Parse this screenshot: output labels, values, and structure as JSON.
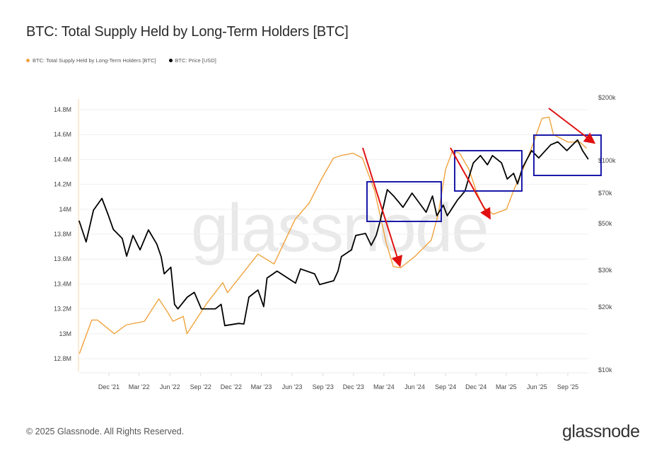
{
  "title": "BTC: Total Supply Held by Long-Term Holders [BTC]",
  "footer": "© 2025 Glassnode. All Rights Reserved.",
  "logo": "glassnode",
  "watermark": "glassnode",
  "colors": {
    "lth_supply": "#f0a33e",
    "price": "#000000",
    "box": "#1a1aaa",
    "arrow": "#e01010"
  },
  "chart_data": {
    "type": "line",
    "title": "BTC: Total Supply Held by Long-Term Holders [BTC]",
    "legend_position": "top-left",
    "grid": true,
    "x_ticks": [
      "Dec '21",
      "Mar '22",
      "Jun '22",
      "Sep '22",
      "Dec '22",
      "Mar '23",
      "Jun '23",
      "Sep '23",
      "Dec '23",
      "Mar '24",
      "Jun '24",
      "Sep '24",
      "Dec '24",
      "Mar '25",
      "Jun '25",
      "Sep '25"
    ],
    "x_tick_dates": [
      "2021-12-01",
      "2022-03-01",
      "2022-06-01",
      "2022-09-01",
      "2022-12-01",
      "2023-03-01",
      "2023-06-01",
      "2023-09-01",
      "2023-12-01",
      "2024-03-01",
      "2024-06-01",
      "2024-09-01",
      "2024-12-01",
      "2025-03-01",
      "2025-06-01",
      "2025-09-01"
    ],
    "xlim": [
      "2021-09-03",
      "2025-11-02"
    ],
    "y_left": {
      "ticks": [
        "12.8M",
        "13M",
        "13.2M",
        "13.4M",
        "13.6M",
        "13.8M",
        "14M",
        "14.2M",
        "14.4M",
        "14.6M",
        "14.8M"
      ],
      "tick_values": [
        12.8,
        13.0,
        13.2,
        13.4,
        13.6,
        13.8,
        14.0,
        14.2,
        14.4,
        14.6,
        14.8
      ],
      "ylim": [
        12.8,
        14.8
      ],
      "unit": "M BTC"
    },
    "y_right": {
      "scale": "log",
      "ticks": [
        "$10k",
        "$20k",
        "$30k",
        "$50k",
        "$70k",
        "$100k",
        "$200k"
      ],
      "tick_values": [
        10000,
        20000,
        30000,
        50000,
        70000,
        100000,
        200000
      ],
      "ylim": [
        10000,
        200000
      ]
    },
    "series": [
      {
        "name": "BTC: Total Supply Held by Long-Term Holders [BTC]",
        "axis": "left",
        "x": [
          "2021-09-04",
          "2021-10-11",
          "2021-10-28",
          "2021-12-17",
          "2022-01-21",
          "2022-03-17",
          "2022-04-29",
          "2022-05-26",
          "2022-06-10",
          "2022-07-11",
          "2022-07-22",
          "2022-09-18",
          "2022-11-06",
          "2022-11-20",
          "2023-02-19",
          "2023-04-08",
          "2023-06-10",
          "2023-07-22",
          "2023-08-27",
          "2023-10-02",
          "2023-10-23",
          "2023-11-30",
          "2023-12-28",
          "2024-02-02",
          "2024-03-08",
          "2024-03-29",
          "2024-04-20",
          "2024-06-01",
          "2024-07-20",
          "2024-08-10",
          "2024-09-01",
          "2024-09-22",
          "2024-10-13",
          "2024-11-10",
          "2024-12-01",
          "2024-12-22",
          "2025-01-21",
          "2025-03-02",
          "2025-03-23",
          "2025-04-20",
          "2025-05-17",
          "2025-06-16",
          "2025-07-07",
          "2025-07-20",
          "2025-09-01",
          "2025-10-07",
          "2025-10-27"
        ],
        "y": [
          12.84,
          13.11,
          13.11,
          13.0,
          13.07,
          13.1,
          13.28,
          13.17,
          13.1,
          13.14,
          13.0,
          13.24,
          13.41,
          13.33,
          13.64,
          13.56,
          13.92,
          14.05,
          14.24,
          14.41,
          14.43,
          14.45,
          14.41,
          14.15,
          13.73,
          13.54,
          13.53,
          13.62,
          13.75,
          13.96,
          14.32,
          14.47,
          14.45,
          14.32,
          14.15,
          14.02,
          13.96,
          14.0,
          14.15,
          14.32,
          14.5,
          14.73,
          14.74,
          14.6,
          14.54,
          14.54,
          14.49
        ]
      },
      {
        "name": "BTC: Price [USD]",
        "axis": "right",
        "x": [
          "2021-09-03",
          "2021-09-24",
          "2021-10-16",
          "2021-11-10",
          "2021-11-29",
          "2021-12-14",
          "2022-01-10",
          "2022-01-23",
          "2022-02-11",
          "2022-03-04",
          "2022-03-29",
          "2022-04-23",
          "2022-05-06",
          "2022-05-15",
          "2022-06-04",
          "2022-06-15",
          "2022-06-25",
          "2022-07-23",
          "2022-08-13",
          "2022-09-03",
          "2022-10-15",
          "2022-11-01",
          "2022-11-12",
          "2022-12-24",
          "2023-01-08",
          "2023-01-23",
          "2023-02-19",
          "2023-03-08",
          "2023-03-18",
          "2023-04-17",
          "2023-06-11",
          "2023-06-26",
          "2023-08-07",
          "2023-08-22",
          "2023-10-03",
          "2023-10-16",
          "2023-10-26",
          "2023-11-25",
          "2023-12-08",
          "2024-01-06",
          "2024-01-23",
          "2024-02-07",
          "2024-02-19",
          "2024-03-05",
          "2024-03-11",
          "2024-03-30",
          "2024-04-27",
          "2024-05-24",
          "2024-07-05",
          "2024-07-24",
          "2024-08-06",
          "2024-08-25",
          "2024-09-06",
          "2024-10-06",
          "2024-10-29",
          "2024-11-12",
          "2024-11-23",
          "2024-12-14",
          "2025-01-04",
          "2025-01-19",
          "2025-02-15",
          "2025-03-04",
          "2025-03-23",
          "2025-04-04",
          "2025-04-19",
          "2025-05-16",
          "2025-06-06",
          "2025-07-12",
          "2025-08-02",
          "2025-08-29",
          "2025-09-30",
          "2025-10-15",
          "2025-11-01"
        ],
        "y": [
          51700,
          40900,
          58000,
          66000,
          55000,
          47000,
          42500,
          35000,
          43900,
          37500,
          46700,
          40000,
          34800,
          28800,
          31000,
          20600,
          19600,
          22300,
          23500,
          19600,
          19600,
          20600,
          16300,
          16700,
          16600,
          22300,
          24100,
          20100,
          27500,
          29700,
          26000,
          30400,
          28800,
          25600,
          26700,
          29700,
          34800,
          37500,
          43900,
          44900,
          39400,
          43900,
          51700,
          66000,
          72700,
          67800,
          59900,
          70000,
          56700,
          67800,
          54600,
          61300,
          54600,
          64700,
          71600,
          85800,
          97600,
          105800,
          95600,
          105800,
          97600,
          81700,
          87000,
          77500,
          92600,
          111700,
          103000,
          119000,
          123000,
          111700,
          125600,
          111700,
          101600
        ]
      }
    ]
  },
  "annotations": {
    "boxes": 3,
    "arrows": 3
  }
}
